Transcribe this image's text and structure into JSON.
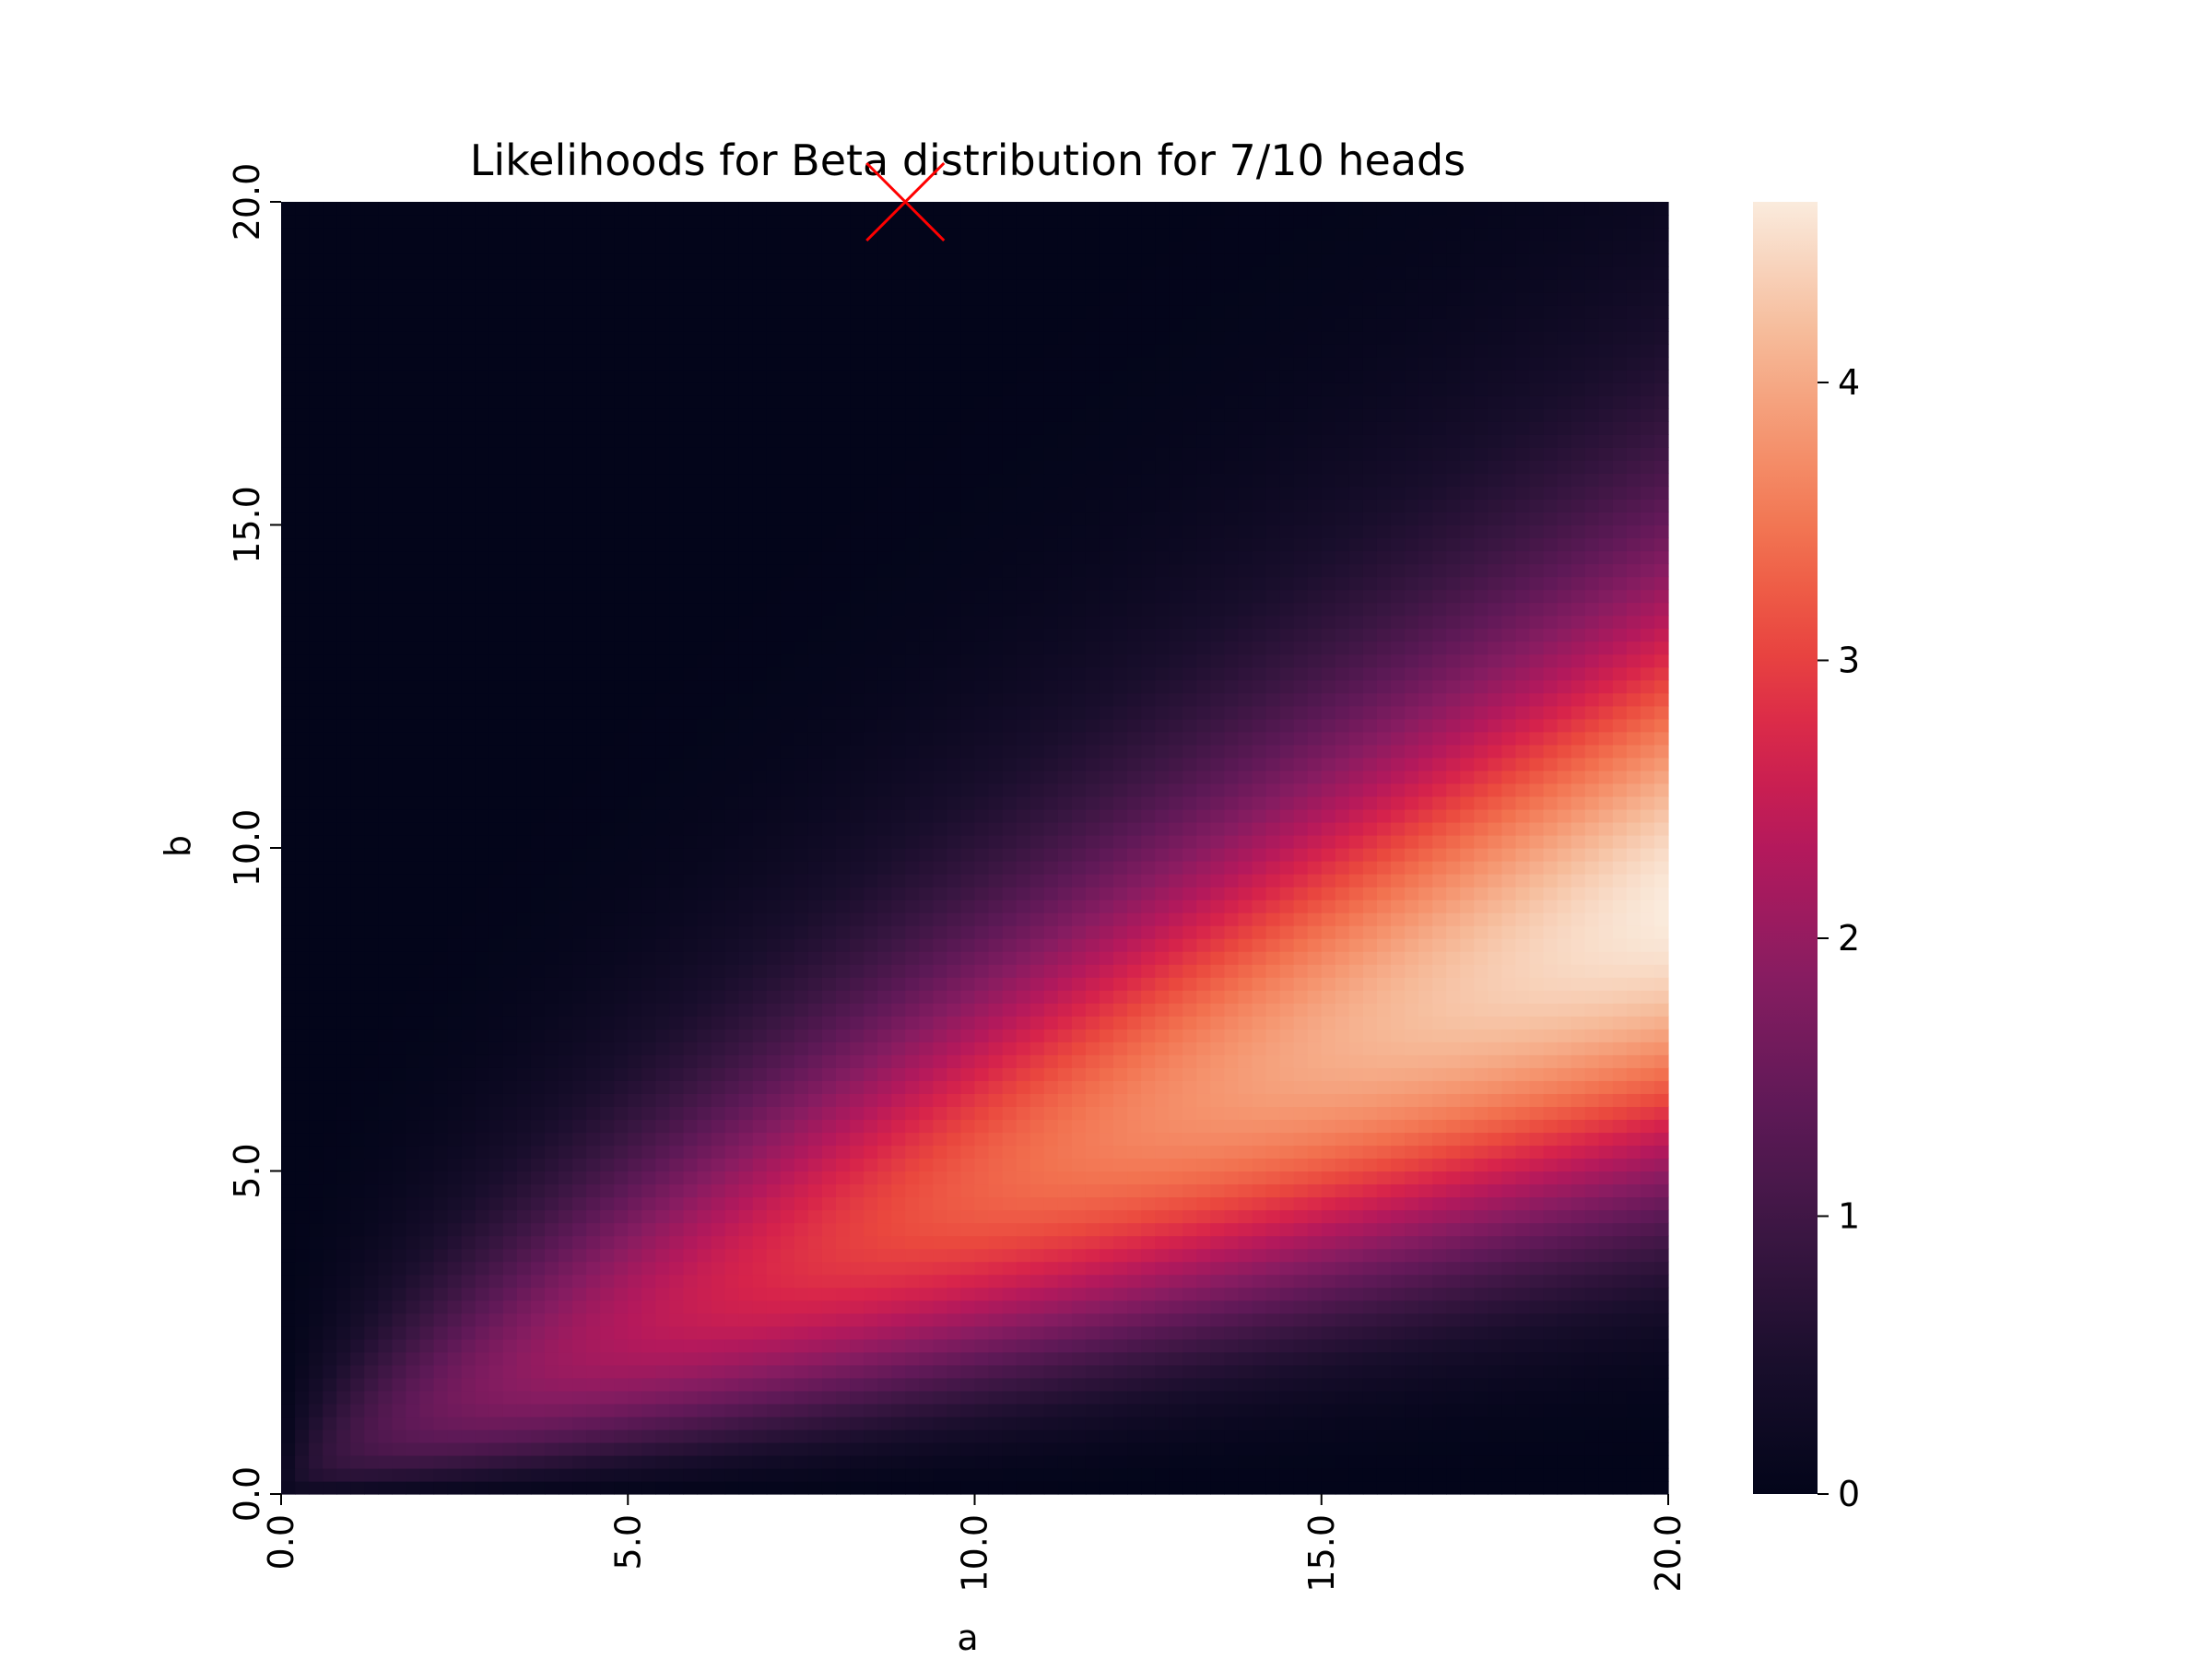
{
  "chart_data": {
    "type": "heatmap",
    "title": "Likelihoods for Beta distribution for 7/10 heads",
    "xlabel": "a",
    "ylabel": "b",
    "xlim": [
      0,
      20
    ],
    "ylim": [
      0,
      20
    ],
    "x_ticks": [
      "0.0",
      "5.0",
      "10.0",
      "15.0",
      "20.0"
    ],
    "y_ticks": [
      "0.0",
      "5.0",
      "10.0",
      "15.0",
      "20.0"
    ],
    "colorbar": {
      "min": 0,
      "max": 4.65,
      "ticks": [
        "0",
        "1",
        "2",
        "3",
        "4"
      ],
      "colormap": "rocket"
    },
    "heads": 7,
    "flips": 10,
    "marker": {
      "symbol": "x",
      "a": 9,
      "b": 20,
      "color": "#ff0000"
    },
    "grid": false,
    "legend": "none"
  }
}
